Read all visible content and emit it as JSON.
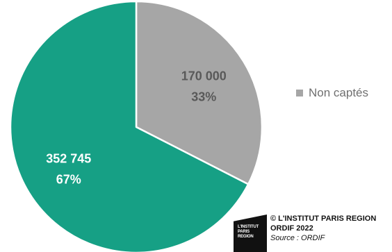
{
  "chart_data": {
    "type": "pie",
    "slices": [
      {
        "label": "Non captés",
        "value": 170000,
        "value_label": "170 000",
        "percent_label": "33%",
        "color": "#a6a6a6"
      },
      {
        "label": "",
        "value": 352745,
        "value_label": "352 745",
        "percent_label": "67%",
        "color": "#16a085"
      }
    ],
    "legend": {
      "entries": [
        "Non captés"
      ],
      "placement": "right"
    },
    "label_color_on_gray": "#595959",
    "label_color_on_teal": "#ffffff"
  },
  "credit": {
    "logo_lines": [
      "L'INSTITUT",
      "PARIS",
      "REGION"
    ],
    "line1": "© L'INSTITUT PARIS REGION",
    "line2": "ORDIF 2022",
    "line3": "Source : ORDIF"
  }
}
